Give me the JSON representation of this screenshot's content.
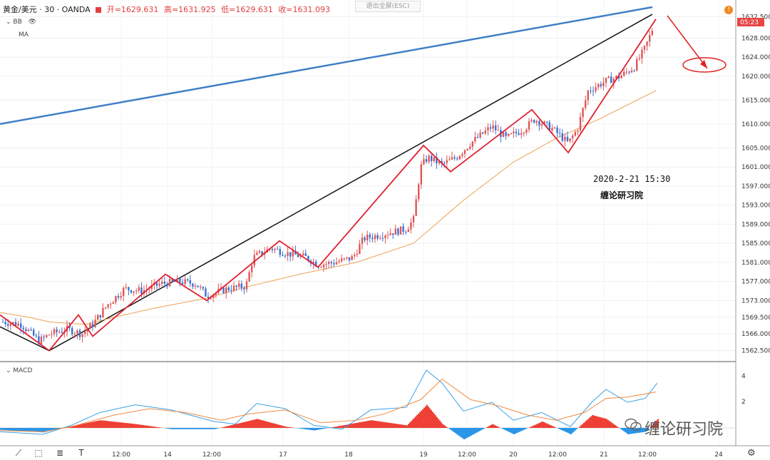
{
  "header": {
    "symbol": "黄金/美元 · 30 · OANDA",
    "open": "开=1629.631",
    "high": "高=1631.925",
    "low": "低=1629.631",
    "close": "收=1631.093",
    "indicator_bb": "BB",
    "indicator_ma": "MA",
    "exit_fullscreen": "退出全屏(ESC)",
    "alert_badge": "!"
  },
  "annotation": {
    "datetime": "2020-2-21 15:30",
    "studio": "缠论研习院",
    "watermark": "缠论研习院"
  },
  "macd": {
    "label": "MACD",
    "y_ticks": [
      "4",
      "2"
    ]
  },
  "current_price_tag": "05:23",
  "chart_data": {
    "type": "candlestick",
    "ylim": [
      1560.5,
      1634.5
    ],
    "y_ticks": [
      "1632.500",
      "1628.000",
      "1624.000",
      "1620.000",
      "1615.000",
      "1610.000",
      "1605.000",
      "1601.000",
      "1597.000",
      "1593.000",
      "1589.000",
      "1585.000",
      "1581.000",
      "1577.000",
      "1573.000",
      "1569.500",
      "1566.000",
      "1562.500"
    ],
    "x_ticks": [
      "12:00",
      "14",
      "12:00",
      "17",
      "18",
      "19",
      "12:00",
      "20",
      "12:00",
      "21",
      "12:00",
      "24"
    ],
    "zigzag_points": [
      [
        0,
        1570
      ],
      [
        69,
        1562.5
      ],
      [
        110,
        1570
      ],
      [
        130,
        1565.5
      ],
      [
        232,
        1578.5
      ],
      [
        290,
        1573
      ],
      [
        392,
        1585.5
      ],
      [
        446,
        1580
      ],
      [
        594,
        1605.5
      ],
      [
        632,
        1600
      ],
      [
        746,
        1613
      ],
      [
        797,
        1604
      ],
      [
        920,
        1632
      ]
    ],
    "black_trendline": [
      [
        0,
        1567.5
      ],
      [
        69,
        1562.5
      ],
      [
        915,
        1633
      ]
    ],
    "blue_trendline": [
      [
        0,
        1610
      ],
      [
        915,
        1634.5
      ]
    ],
    "ma_line": [
      [
        0,
        1570.5
      ],
      [
        40,
        1569.5
      ],
      [
        70,
        1568.5
      ],
      [
        120,
        1568
      ],
      [
        160,
        1569.5
      ],
      [
        220,
        1571.5
      ],
      [
        290,
        1573.5
      ],
      [
        350,
        1576
      ],
      [
        420,
        1578.5
      ],
      [
        500,
        1581
      ],
      [
        580,
        1585
      ],
      [
        650,
        1594
      ],
      [
        720,
        1602
      ],
      [
        780,
        1607
      ],
      [
        840,
        1611
      ],
      [
        880,
        1614
      ],
      [
        920,
        1617
      ]
    ],
    "candle_close_path": [
      [
        5,
        1568.5
      ],
      [
        30,
        1568
      ],
      [
        55,
        1564.5
      ],
      [
        70,
        1566
      ],
      [
        95,
        1567
      ],
      [
        115,
        1566
      ],
      [
        130,
        1568
      ],
      [
        150,
        1572
      ],
      [
        175,
        1575.5
      ],
      [
        200,
        1575
      ],
      [
        225,
        1576.5
      ],
      [
        250,
        1577
      ],
      [
        275,
        1576.5
      ],
      [
        290,
        1574
      ],
      [
        320,
        1575.5
      ],
      [
        345,
        1576
      ],
      [
        355,
        1582
      ],
      [
        380,
        1584
      ],
      [
        400,
        1583
      ],
      [
        430,
        1582
      ],
      [
        446,
        1580.5
      ],
      [
        470,
        1581
      ],
      [
        495,
        1582
      ],
      [
        510,
        1586
      ],
      [
        540,
        1587
      ],
      [
        570,
        1588
      ],
      [
        580,
        1590
      ],
      [
        590,
        1601
      ],
      [
        600,
        1603
      ],
      [
        620,
        1601.5
      ],
      [
        640,
        1603
      ],
      [
        660,
        1606
      ],
      [
        690,
        1609.5
      ],
      [
        710,
        1607
      ],
      [
        735,
        1609
      ],
      [
        750,
        1611
      ],
      [
        775,
        1609
      ],
      [
        797,
        1606
      ],
      [
        810,
        1609
      ],
      [
        825,
        1617
      ],
      [
        850,
        1619
      ],
      [
        870,
        1620
      ],
      [
        890,
        1622
      ],
      [
        905,
        1626
      ],
      [
        918,
        1631
      ]
    ],
    "macd_line": [
      [
        0,
        -0.3
      ],
      [
        60,
        -0.5
      ],
      [
        100,
        0.2
      ],
      [
        140,
        1.2
      ],
      [
        190,
        1.8
      ],
      [
        240,
        1.4
      ],
      [
        300,
        0.5
      ],
      [
        330,
        0.3
      ],
      [
        360,
        1.9
      ],
      [
        400,
        1.5
      ],
      [
        440,
        0.2
      ],
      [
        480,
        -0.1
      ],
      [
        520,
        1.4
      ],
      [
        570,
        1.6
      ],
      [
        598,
        4.5
      ],
      [
        620,
        3.5
      ],
      [
        650,
        1.3
      ],
      [
        690,
        2.0
      ],
      [
        720,
        0.6
      ],
      [
        760,
        1.2
      ],
      [
        800,
        0.1
      ],
      [
        830,
        2.0
      ],
      [
        850,
        3.0
      ],
      [
        880,
        2.0
      ],
      [
        905,
        2.3
      ],
      [
        922,
        3.5
      ]
    ],
    "signal_line": [
      [
        0,
        -0.2
      ],
      [
        60,
        -0.3
      ],
      [
        100,
        0.1
      ],
      [
        160,
        1.0
      ],
      [
        210,
        1.5
      ],
      [
        260,
        1.2
      ],
      [
        310,
        0.6
      ],
      [
        350,
        1.1
      ],
      [
        400,
        1.4
      ],
      [
        450,
        0.4
      ],
      [
        500,
        0.6
      ],
      [
        540,
        1.1
      ],
      [
        590,
        2.2
      ],
      [
        620,
        3.8
      ],
      [
        660,
        2.2
      ],
      [
        700,
        1.7
      ],
      [
        740,
        1.0
      ],
      [
        780,
        0.6
      ],
      [
        820,
        1.2
      ],
      [
        850,
        2.3
      ],
      [
        880,
        2.4
      ],
      [
        920,
        2.8
      ]
    ],
    "histogram_line": [
      [
        0,
        -0.15
      ],
      [
        60,
        -0.35
      ],
      [
        100,
        0.15
      ],
      [
        140,
        0.6
      ],
      [
        190,
        0.3
      ],
      [
        240,
        -0.1
      ],
      [
        300,
        -0.1
      ],
      [
        360,
        0.7
      ],
      [
        400,
        0.1
      ],
      [
        440,
        -0.2
      ],
      [
        520,
        0.6
      ],
      [
        570,
        0.2
      ],
      [
        598,
        1.8
      ],
      [
        620,
        0.3
      ],
      [
        650,
        -0.9
      ],
      [
        690,
        0.3
      ],
      [
        720,
        -0.5
      ],
      [
        760,
        0.5
      ],
      [
        800,
        -0.5
      ],
      [
        830,
        1.0
      ],
      [
        850,
        0.7
      ],
      [
        880,
        -0.5
      ],
      [
        905,
        -0.3
      ],
      [
        922,
        0.7
      ]
    ]
  }
}
